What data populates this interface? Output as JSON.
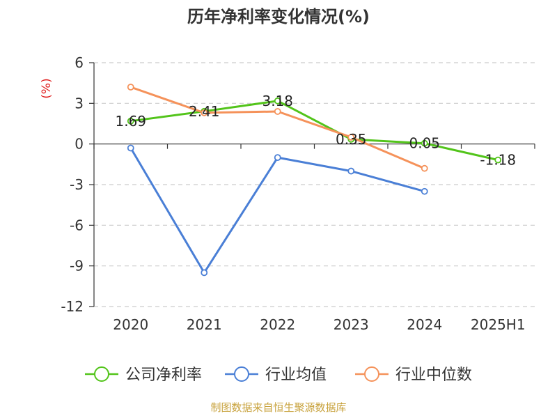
{
  "chart_data": {
    "type": "line",
    "title": "历年净利率变化情况(%)",
    "ylabel": "(%)",
    "categories": [
      "2020",
      "2021",
      "2022",
      "2023",
      "2024",
      "2025H1"
    ],
    "ylim": [
      -12,
      6
    ],
    "yticks": [
      6,
      3,
      0,
      -3,
      -6,
      -9,
      -12
    ],
    "grid": true,
    "legend_position": "bottom",
    "series": [
      {
        "name": "公司净利率",
        "color": "#52c41a",
        "values": [
          1.69,
          2.41,
          3.18,
          0.35,
          0.05,
          -1.18
        ],
        "labels": [
          "1.69",
          "2.41",
          "3.18",
          "0.35",
          "0.05",
          "-1.18"
        ]
      },
      {
        "name": "行业均值",
        "color": "#4a7fd6",
        "values": [
          -0.3,
          -9.5,
          -1.0,
          -2.0,
          -3.5,
          null
        ]
      },
      {
        "name": "行业中位数",
        "color": "#f5925a",
        "values": [
          4.2,
          2.3,
          2.4,
          0.5,
          -1.8,
          null
        ]
      }
    ]
  },
  "source": "制图数据来自恒生聚源数据库"
}
